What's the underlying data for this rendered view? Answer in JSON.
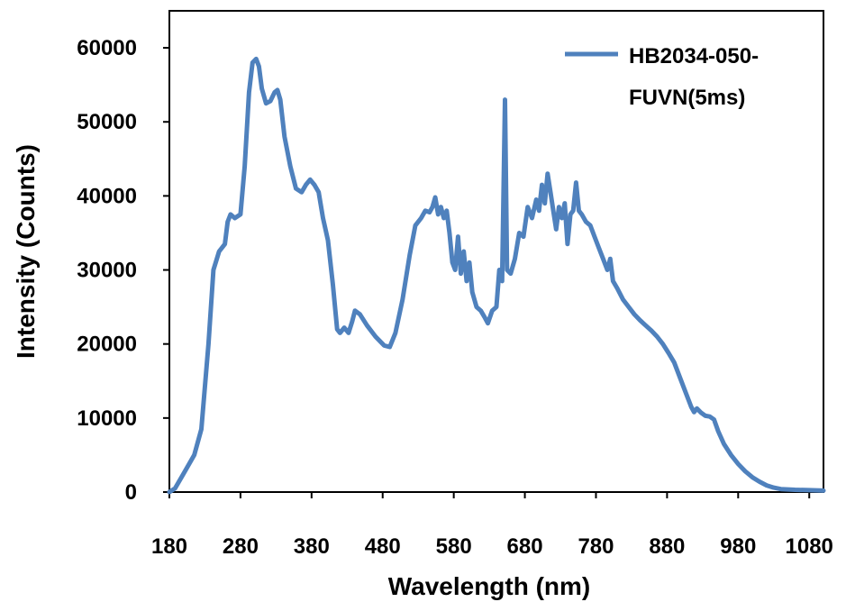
{
  "chart_data": {
    "type": "line",
    "title": "",
    "xlabel": "Wavelength (nm)",
    "ylabel": "Intensity (Counts)",
    "xlim": [
      180,
      1100
    ],
    "ylim": [
      0,
      65000
    ],
    "xticks": [
      180,
      280,
      380,
      480,
      580,
      680,
      780,
      880,
      980,
      1080
    ],
    "yticks": [
      0,
      10000,
      20000,
      30000,
      40000,
      50000,
      60000
    ],
    "grid": false,
    "legend_position": "top-right",
    "series": [
      {
        "name": "HB2034-050-FUVN(5ms)",
        "color": "#4f81bd",
        "points": [
          [
            180,
            0
          ],
          [
            188,
            500
          ],
          [
            200,
            2500
          ],
          [
            215,
            5000
          ],
          [
            225,
            8500
          ],
          [
            235,
            20000
          ],
          [
            242,
            30000
          ],
          [
            250,
            32500
          ],
          [
            258,
            33500
          ],
          [
            262,
            36500
          ],
          [
            266,
            37500
          ],
          [
            272,
            37000
          ],
          [
            280,
            37500
          ],
          [
            286,
            44000
          ],
          [
            292,
            54000
          ],
          [
            297,
            58000
          ],
          [
            302,
            58500
          ],
          [
            306,
            57500
          ],
          [
            310,
            54500
          ],
          [
            316,
            52500
          ],
          [
            322,
            52800
          ],
          [
            328,
            54000
          ],
          [
            332,
            54300
          ],
          [
            336,
            53000
          ],
          [
            342,
            48000
          ],
          [
            350,
            44000
          ],
          [
            358,
            41000
          ],
          [
            366,
            40500
          ],
          [
            372,
            41500
          ],
          [
            378,
            42200
          ],
          [
            384,
            41500
          ],
          [
            390,
            40500
          ],
          [
            396,
            37000
          ],
          [
            403,
            34000
          ],
          [
            410,
            28000
          ],
          [
            416,
            22000
          ],
          [
            420,
            21500
          ],
          [
            426,
            22200
          ],
          [
            432,
            21500
          ],
          [
            437,
            23000
          ],
          [
            441,
            24500
          ],
          [
            448,
            24000
          ],
          [
            458,
            22500
          ],
          [
            470,
            21000
          ],
          [
            482,
            19800
          ],
          [
            490,
            19600
          ],
          [
            498,
            21500
          ],
          [
            508,
            26000
          ],
          [
            518,
            32000
          ],
          [
            526,
            36000
          ],
          [
            534,
            37000
          ],
          [
            540,
            38000
          ],
          [
            546,
            37800
          ],
          [
            550,
            38500
          ],
          [
            554,
            39800
          ],
          [
            558,
            37500
          ],
          [
            562,
            38500
          ],
          [
            566,
            37000
          ],
          [
            570,
            38000
          ],
          [
            574,
            35000
          ],
          [
            578,
            31000
          ],
          [
            582,
            30000
          ],
          [
            586,
            34500
          ],
          [
            590,
            29500
          ],
          [
            594,
            32500
          ],
          [
            598,
            28500
          ],
          [
            602,
            31000
          ],
          [
            606,
            27000
          ],
          [
            612,
            25000
          ],
          [
            618,
            24500
          ],
          [
            624,
            23500
          ],
          [
            628,
            22800
          ],
          [
            634,
            24500
          ],
          [
            640,
            25000
          ],
          [
            644,
            30000
          ],
          [
            648,
            28500
          ],
          [
            652,
            53000
          ],
          [
            655,
            30000
          ],
          [
            660,
            29500
          ],
          [
            666,
            31500
          ],
          [
            672,
            35000
          ],
          [
            678,
            34500
          ],
          [
            684,
            38500
          ],
          [
            690,
            37000
          ],
          [
            696,
            39500
          ],
          [
            700,
            38000
          ],
          [
            704,
            41500
          ],
          [
            708,
            39000
          ],
          [
            712,
            43000
          ],
          [
            716,
            40500
          ],
          [
            720,
            38000
          ],
          [
            724,
            35500
          ],
          [
            728,
            38500
          ],
          [
            732,
            37000
          ],
          [
            736,
            39000
          ],
          [
            740,
            33500
          ],
          [
            744,
            37500
          ],
          [
            748,
            38000
          ],
          [
            752,
            41800
          ],
          [
            756,
            38000
          ],
          [
            760,
            37500
          ],
          [
            766,
            36500
          ],
          [
            772,
            36000
          ],
          [
            778,
            34500
          ],
          [
            784,
            33000
          ],
          [
            790,
            31500
          ],
          [
            796,
            30000
          ],
          [
            800,
            31500
          ],
          [
            804,
            28500
          ],
          [
            810,
            27500
          ],
          [
            818,
            26000
          ],
          [
            826,
            25000
          ],
          [
            834,
            24000
          ],
          [
            842,
            23200
          ],
          [
            850,
            22500
          ],
          [
            858,
            21800
          ],
          [
            866,
            21000
          ],
          [
            874,
            20000
          ],
          [
            882,
            18800
          ],
          [
            890,
            17500
          ],
          [
            898,
            15500
          ],
          [
            906,
            13500
          ],
          [
            914,
            11500
          ],
          [
            918,
            10800
          ],
          [
            922,
            11300
          ],
          [
            928,
            10700
          ],
          [
            934,
            10300
          ],
          [
            940,
            10200
          ],
          [
            946,
            9800
          ],
          [
            952,
            8200
          ],
          [
            960,
            6500
          ],
          [
            970,
            5000
          ],
          [
            980,
            3800
          ],
          [
            990,
            2800
          ],
          [
            1000,
            2000
          ],
          [
            1010,
            1400
          ],
          [
            1020,
            900
          ],
          [
            1030,
            600
          ],
          [
            1040,
            400
          ],
          [
            1060,
            300
          ],
          [
            1080,
            250
          ],
          [
            1100,
            200
          ]
        ]
      }
    ]
  }
}
